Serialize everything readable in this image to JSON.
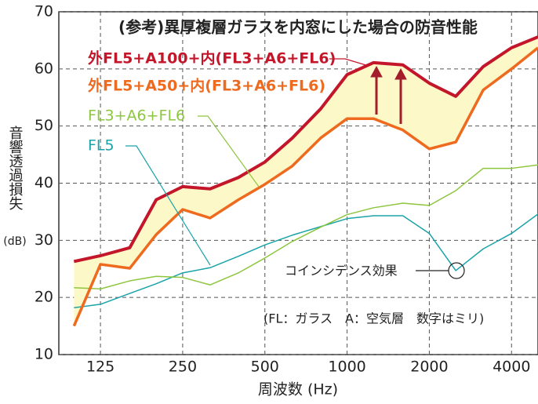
{
  "chart_data": {
    "type": "line",
    "title": "(参考)異厚複層ガラスを内窓にした場合の防音性能",
    "x_label": "周波数 (Hz)",
    "y_label": "音響透過損失",
    "y_unit": "(dB)",
    "x": [
      100,
      125,
      160,
      200,
      250,
      315,
      400,
      500,
      630,
      800,
      1000,
      1250,
      1600,
      2000,
      2500,
      3150,
      4000,
      5000
    ],
    "xlim": [
      88,
      5000
    ],
    "log_x": true,
    "xticks": [
      125,
      250,
      500,
      1000,
      2000,
      4000
    ],
    "ylim": [
      10,
      70
    ],
    "yticks": [
      10,
      20,
      30,
      40,
      50,
      60,
      70
    ],
    "grid": true,
    "series": [
      {
        "name": "外FL5+A100+内(FL3+A6+FL6)",
        "color": "#c4162a",
        "values": [
          26.3,
          27.3,
          28.7,
          37.1,
          39.4,
          39.0,
          41.0,
          43.7,
          47.9,
          53.0,
          59.0,
          61.1,
          60.7,
          57.5,
          55.2,
          60.4,
          63.7,
          65.6
        ]
      },
      {
        "name": "外FL5+A50+内(FL3+A6+FL6)",
        "color": "#ee6a1f",
        "values": [
          15.0,
          25.8,
          25.1,
          31.0,
          35.4,
          33.9,
          37.1,
          39.8,
          43.0,
          47.9,
          51.3,
          51.3,
          49.3,
          46.0,
          47.2,
          56.3,
          60.0,
          63.7
        ]
      },
      {
        "name": "FL3+A6+FL6",
        "color": "#8dc63f",
        "values": [
          21.7,
          21.5,
          22.9,
          23.7,
          23.5,
          22.2,
          24.3,
          26.9,
          29.8,
          32.3,
          34.5,
          35.7,
          36.5,
          36.1,
          38.7,
          42.6,
          42.6,
          43.2
        ]
      },
      {
        "name": "FL5",
        "color": "#1aa3a8",
        "values": [
          18.2,
          18.8,
          20.7,
          22.4,
          24.3,
          25.2,
          27.2,
          29.2,
          30.9,
          32.4,
          33.8,
          34.3,
          34.3,
          31.2,
          24.7,
          28.5,
          31.2,
          34.6
        ]
      }
    ],
    "annotations": [
      "コインシデンス効果",
      "(FL：ガラス　A：空気層　数字はミリ)"
    ]
  }
}
